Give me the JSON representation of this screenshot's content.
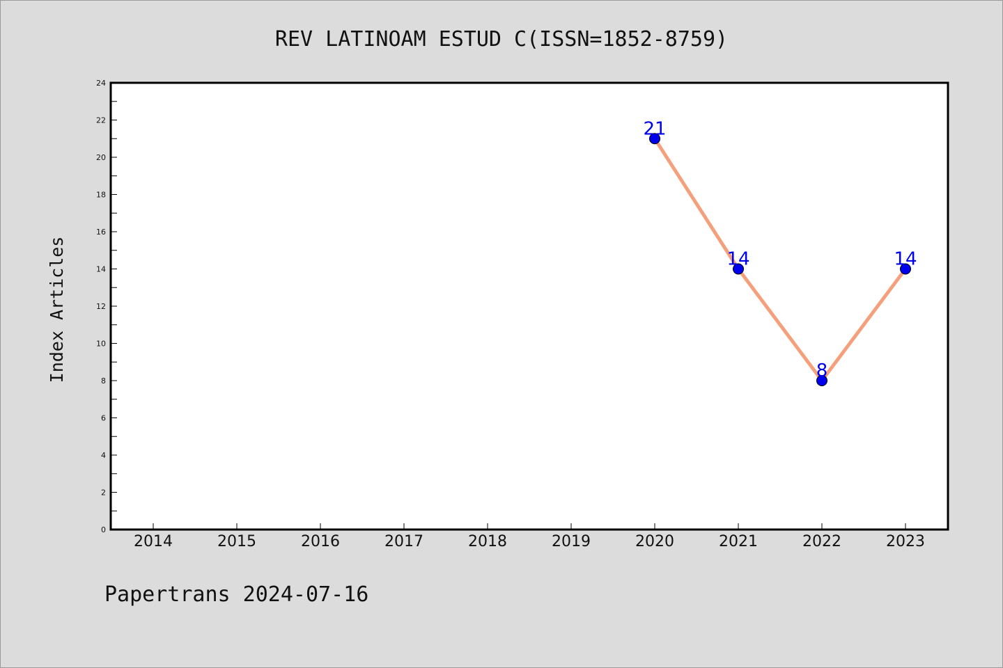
{
  "chart_data": {
    "type": "line",
    "title": "REV LATINOAM ESTUD C(ISSN=1852-8759)",
    "xlabel": "",
    "ylabel": "Index Articles",
    "categories": [
      "2014",
      "2015",
      "2016",
      "2017",
      "2018",
      "2019",
      "2020",
      "2021",
      "2022",
      "2023"
    ],
    "series": [
      {
        "values": [
          null,
          null,
          null,
          null,
          null,
          null,
          21,
          14,
          8,
          14
        ],
        "line_color": "#f4a07c",
        "marker_color": "#0000ee",
        "label_color": "#0000ee"
      }
    ],
    "ylim": [
      0,
      24
    ],
    "yticks": [
      0,
      2,
      4,
      6,
      8,
      10,
      12,
      14,
      16,
      18,
      20,
      22,
      24
    ],
    "grid": false,
    "legend": "none",
    "data_labels": true
  },
  "footer": {
    "text": "Papertrans 2024-07-16"
  },
  "colors": {
    "background": "#dcdcdc",
    "plot_background": "#ffffff",
    "axis": "#000000"
  }
}
